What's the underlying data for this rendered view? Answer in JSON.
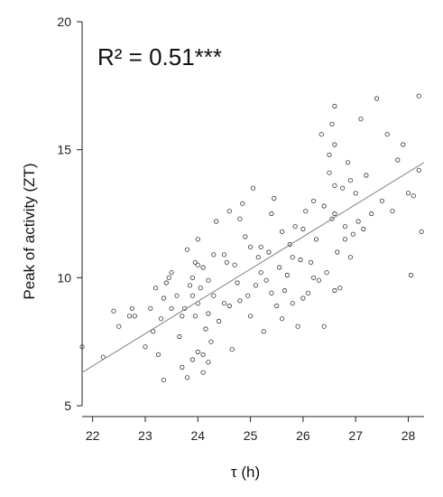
{
  "chart_data": {
    "type": "scatter",
    "xlabel": "τ (h)",
    "ylabel": "Peak of activity (ZT)",
    "annotation": "R² = 0.51***",
    "xlim": [
      21.8,
      28.3
    ],
    "ylim": [
      5,
      20
    ],
    "xticks": [
      22,
      23,
      24,
      25,
      26,
      27,
      28
    ],
    "yticks": [
      5,
      10,
      15,
      20
    ],
    "grid": false,
    "colors": {
      "points": "#333333",
      "fit_line": "#8a8a8a",
      "axes": "#222222"
    },
    "fit_line": {
      "x": [
        21.8,
        28.3
      ],
      "y": [
        6.3,
        14.5
      ]
    },
    "points": [
      [
        21.8,
        7.3
      ],
      [
        22.2,
        6.9
      ],
      [
        22.4,
        8.7
      ],
      [
        22.5,
        8.1
      ],
      [
        22.7,
        8.5
      ],
      [
        22.75,
        8.8
      ],
      [
        22.8,
        8.5
      ],
      [
        23.0,
        7.3
      ],
      [
        23.1,
        8.8
      ],
      [
        23.15,
        7.9
      ],
      [
        23.2,
        9.6
      ],
      [
        23.25,
        7.0
      ],
      [
        23.3,
        8.4
      ],
      [
        23.35,
        9.2
      ],
      [
        23.4,
        9.8
      ],
      [
        23.45,
        10.0
      ],
      [
        23.5,
        8.8
      ],
      [
        23.6,
        9.3
      ],
      [
        23.65,
        7.7
      ],
      [
        23.7,
        8.5
      ],
      [
        23.8,
        6.1
      ],
      [
        23.85,
        9.7
      ],
      [
        23.9,
        10.0
      ],
      [
        23.95,
        10.6
      ],
      [
        24.0,
        10.5
      ],
      [
        24.05,
        9.6
      ],
      [
        24.1,
        7.0
      ],
      [
        24.15,
        8.0
      ],
      [
        24.2,
        9.9
      ],
      [
        24.25,
        7.5
      ],
      [
        24.3,
        10.9
      ],
      [
        24.35,
        12.2
      ],
      [
        23.35,
        6.0
      ],
      [
        23.7,
        6.5
      ],
      [
        23.9,
        6.8
      ],
      [
        24.0,
        7.1
      ],
      [
        24.1,
        6.3
      ],
      [
        24.2,
        6.7
      ],
      [
        23.5,
        10.2
      ],
      [
        23.8,
        11.1
      ],
      [
        24.0,
        11.5
      ],
      [
        24.1,
        10.4
      ],
      [
        23.75,
        8.8
      ],
      [
        23.9,
        9.3
      ],
      [
        24.4,
        8.3
      ],
      [
        24.5,
        9.0
      ],
      [
        24.55,
        10.6
      ],
      [
        24.6,
        8.9
      ],
      [
        24.65,
        7.2
      ],
      [
        24.7,
        10.5
      ],
      [
        24.75,
        9.8
      ],
      [
        24.8,
        12.3
      ],
      [
        24.85,
        12.9
      ],
      [
        24.9,
        11.6
      ],
      [
        24.95,
        9.3
      ],
      [
        25.0,
        8.5
      ],
      [
        24.6,
        12.6
      ],
      [
        25.05,
        13.5
      ],
      [
        25.1,
        9.7
      ],
      [
        25.15,
        10.8
      ],
      [
        25.2,
        11.2
      ],
      [
        25.25,
        7.9
      ],
      [
        25.3,
        9.9
      ],
      [
        25.35,
        11.0
      ],
      [
        25.4,
        12.5
      ],
      [
        25.45,
        13.1
      ],
      [
        25.5,
        8.9
      ],
      [
        25.55,
        10.4
      ],
      [
        25.6,
        11.8
      ],
      [
        25.65,
        9.5
      ],
      [
        25.7,
        10.1
      ],
      [
        25.75,
        11.3
      ],
      [
        25.8,
        9.0
      ],
      [
        25.85,
        12.0
      ],
      [
        25.9,
        8.1
      ],
      [
        25.95,
        10.7
      ],
      [
        26.0,
        11.9
      ],
      [
        26.05,
        12.6
      ],
      [
        26.1,
        9.4
      ],
      [
        26.15,
        10.6
      ],
      [
        26.2,
        13.0
      ],
      [
        26.25,
        11.5
      ],
      [
        26.3,
        9.9
      ],
      [
        26.35,
        15.6
      ],
      [
        26.4,
        12.8
      ],
      [
        26.45,
        10.2
      ],
      [
        26.5,
        14.1
      ],
      [
        26.55,
        12.3
      ],
      [
        26.6,
        16.7
      ],
      [
        26.65,
        11.0
      ],
      [
        26.7,
        9.6
      ],
      [
        26.75,
        13.5
      ],
      [
        26.8,
        12.0
      ],
      [
        26.85,
        14.5
      ],
      [
        26.9,
        10.8
      ],
      [
        26.95,
        11.7
      ],
      [
        27.0,
        13.3
      ],
      [
        27.05,
        12.2
      ],
      [
        27.1,
        16.2
      ],
      [
        27.15,
        11.9
      ],
      [
        27.2,
        14.0
      ],
      [
        27.3,
        12.5
      ],
      [
        27.4,
        17.0
      ],
      [
        27.5,
        13.0
      ],
      [
        27.6,
        15.6
      ],
      [
        27.7,
        12.6
      ],
      [
        27.8,
        14.6
      ],
      [
        27.9,
        15.2
      ],
      [
        28.0,
        13.3
      ],
      [
        28.05,
        10.1
      ],
      [
        28.1,
        13.2
      ],
      [
        28.2,
        17.1
      ],
      [
        28.25,
        11.8
      ],
      [
        28.2,
        14.2
      ],
      [
        25.0,
        11.2
      ],
      [
        25.2,
        10.2
      ],
      [
        25.4,
        9.4
      ],
      [
        25.6,
        8.4
      ],
      [
        25.8,
        10.8
      ],
      [
        26.0,
        9.2
      ],
      [
        26.2,
        10.0
      ],
      [
        26.4,
        8.1
      ],
      [
        26.6,
        9.5
      ],
      [
        26.8,
        11.5
      ],
      [
        26.9,
        13.8
      ],
      [
        26.6,
        15.2
      ],
      [
        26.6,
        12.5
      ],
      [
        26.5,
        14.8
      ],
      [
        26.55,
        16.0
      ],
      [
        26.6,
        13.6
      ],
      [
        24.8,
        9.1
      ],
      [
        24.5,
        10.9
      ],
      [
        24.3,
        9.3
      ],
      [
        24.2,
        8.6
      ],
      [
        24.0,
        9.0
      ],
      [
        23.95,
        8.5
      ]
    ]
  }
}
